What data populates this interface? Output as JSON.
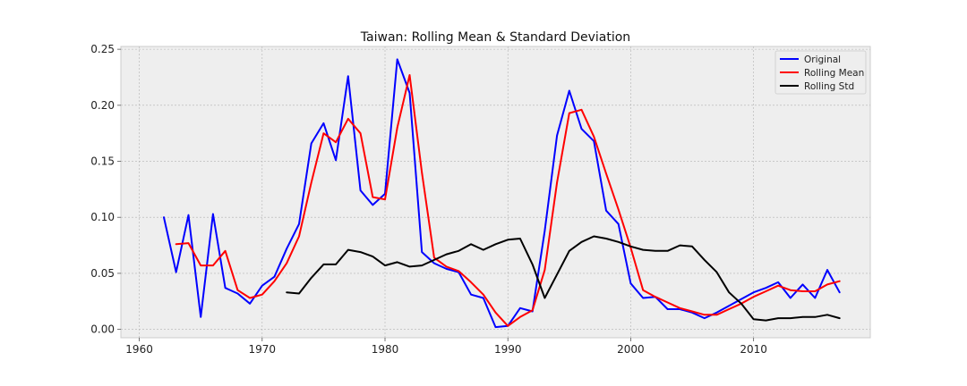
{
  "chart_data": {
    "type": "line",
    "title": "Taiwan: Rolling Mean & Standard Deviation",
    "xlabel": "",
    "ylabel": "",
    "xlim": [
      1958.5,
      2019.5
    ],
    "ylim": [
      -0.0075,
      0.2525
    ],
    "x_ticks": [
      1960,
      1970,
      1980,
      1990,
      2000,
      2010
    ],
    "y_ticks": [
      0.0,
      0.05,
      0.1,
      0.15,
      0.2,
      0.25
    ],
    "y_tick_labels": [
      "0.00",
      "0.05",
      "0.10",
      "0.15",
      "0.20",
      "0.25"
    ],
    "grid": true,
    "legend_position": "top-right",
    "series": [
      {
        "name": "Original",
        "color": "#0000ff",
        "x": [
          1962,
          1963,
          1964,
          1965,
          1966,
          1967,
          1968,
          1969,
          1970,
          1971,
          1972,
          1973,
          1974,
          1975,
          1976,
          1977,
          1978,
          1979,
          1980,
          1981,
          1982,
          1983,
          1984,
          1985,
          1986,
          1987,
          1988,
          1989,
          1990,
          1991,
          1992,
          1993,
          1994,
          1995,
          1996,
          1997,
          1998,
          1999,
          2000,
          2001,
          2002,
          2003,
          2004,
          2005,
          2006,
          2007,
          2008,
          2009,
          2010,
          2011,
          2012,
          2013,
          2014,
          2015,
          2016,
          2017
        ],
        "y": [
          0.1,
          0.051,
          0.102,
          0.011,
          0.103,
          0.037,
          0.032,
          0.023,
          0.039,
          0.047,
          0.072,
          0.094,
          0.166,
          0.184,
          0.151,
          0.226,
          0.124,
          0.111,
          0.121,
          0.241,
          0.211,
          0.069,
          0.059,
          0.054,
          0.051,
          0.031,
          0.028,
          0.002,
          0.003,
          0.019,
          0.016,
          0.088,
          0.173,
          0.213,
          0.179,
          0.168,
          0.106,
          0.094,
          0.041,
          0.028,
          0.029,
          0.018,
          0.018,
          0.015,
          0.01,
          0.015,
          0.021,
          0.027,
          0.033,
          0.037,
          0.042,
          0.028,
          0.04,
          0.028,
          0.053,
          0.033
        ]
      },
      {
        "name": "Rolling Mean",
        "color": "#ff0000",
        "x": [
          1963,
          1964,
          1965,
          1966,
          1967,
          1968,
          1969,
          1970,
          1971,
          1972,
          1973,
          1974,
          1975,
          1976,
          1977,
          1978,
          1979,
          1980,
          1981,
          1982,
          1983,
          1984,
          1985,
          1986,
          1987,
          1988,
          1989,
          1990,
          1991,
          1992,
          1993,
          1994,
          1995,
          1996,
          1997,
          1998,
          1999,
          2000,
          2001,
          2002,
          2003,
          2004,
          2005,
          2006,
          2007,
          2008,
          2009,
          2010,
          2011,
          2012,
          2013,
          2014,
          2015,
          2016,
          2017
        ],
        "y": [
          0.076,
          0.077,
          0.057,
          0.057,
          0.07,
          0.035,
          0.028,
          0.031,
          0.043,
          0.059,
          0.083,
          0.131,
          0.175,
          0.167,
          0.188,
          0.175,
          0.118,
          0.116,
          0.18,
          0.227,
          0.14,
          0.064,
          0.056,
          0.052,
          0.042,
          0.031,
          0.015,
          0.003,
          0.011,
          0.017,
          0.053,
          0.131,
          0.193,
          0.196,
          0.172,
          0.139,
          0.107,
          0.073,
          0.035,
          0.029,
          0.024,
          0.019,
          0.016,
          0.013,
          0.013,
          0.018,
          0.023,
          0.029,
          0.034,
          0.039,
          0.035,
          0.034,
          0.034,
          0.04,
          0.043
        ]
      },
      {
        "name": "Rolling Std",
        "color": "#000000",
        "x": [
          1972,
          1973,
          1974,
          1975,
          1976,
          1977,
          1978,
          1979,
          1980,
          1981,
          1982,
          1983,
          1984,
          1985,
          1986,
          1987,
          1988,
          1989,
          1990,
          1991,
          1992,
          1993,
          1994,
          1995,
          1996,
          1997,
          1998,
          1999,
          2000,
          2001,
          2002,
          2003,
          2004,
          2005,
          2006,
          2007,
          2008,
          2009,
          2010,
          2011,
          2012,
          2013,
          2014,
          2015,
          2016,
          2017
        ],
        "y": [
          0.033,
          0.032,
          0.046,
          0.058,
          0.058,
          0.071,
          0.069,
          0.065,
          0.057,
          0.06,
          0.056,
          0.057,
          0.062,
          0.067,
          0.07,
          0.076,
          0.071,
          0.076,
          0.08,
          0.081,
          0.058,
          0.028,
          0.049,
          0.07,
          0.078,
          0.083,
          0.081,
          0.078,
          0.074,
          0.071,
          0.07,
          0.07,
          0.075,
          0.074,
          0.062,
          0.051,
          0.033,
          0.023,
          0.009,
          0.008,
          0.01,
          0.01,
          0.011,
          0.011,
          0.013,
          0.01
        ]
      }
    ]
  }
}
